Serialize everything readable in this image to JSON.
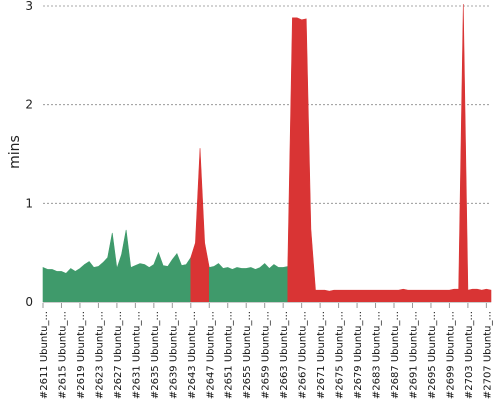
{
  "chart_data": {
    "type": "area",
    "title": "",
    "xlabel": "",
    "ylabel": "mins",
    "ylim": [
      0,
      3
    ],
    "y_ticks": [
      "0",
      "1",
      "2",
      "3"
    ],
    "grid": "horizontal dashed",
    "legend": "none",
    "colors": {
      "pass": "#3f9a6b",
      "fail": "#d93434"
    },
    "x_tick_labels": [
      "#2611 Ubuntu_...",
      "#2615 Ubuntu_...",
      "#2619 Ubuntu_...",
      "#2623 Ubuntu_...",
      "#2627 Ubuntu_...",
      "#2631 Ubuntu_...",
      "#2635 Ubuntu_...",
      "#2639 Ubuntu_...",
      "#2643 Ubuntu_...",
      "#2647 Ubuntu_...",
      "#2651 Ubuntu_...",
      "#2655 Ubuntu_...",
      "#2659 Ubuntu_...",
      "#2663 Ubuntu_...",
      "#2667 Ubuntu_...",
      "#2671 Ubuntu_...",
      "#2675 Ubuntu_...",
      "#2679 Ubuntu_...",
      "#2683 Ubuntu_...",
      "#2687 Ubuntu_...",
      "#2691 Ubuntu_...",
      "#2695 Ubuntu_...",
      "#2699 Ubuntu_...",
      "#2703 Ubuntu_...",
      "#2707 Ubuntu_..."
    ],
    "build_start": 2611,
    "build_end": 2708,
    "durations": [
      0.35,
      0.33,
      0.33,
      0.31,
      0.31,
      0.29,
      0.34,
      0.31,
      0.34,
      0.38,
      0.41,
      0.35,
      0.36,
      0.4,
      0.45,
      0.7,
      0.34,
      0.48,
      0.73,
      0.35,
      0.37,
      0.39,
      0.38,
      0.35,
      0.38,
      0.5,
      0.37,
      0.36,
      0.43,
      0.49,
      0.37,
      0.38,
      0.45,
      0.6,
      1.56,
      0.6,
      0.35,
      0.36,
      0.39,
      0.34,
      0.35,
      0.33,
      0.35,
      0.34,
      0.34,
      0.35,
      0.33,
      0.35,
      0.39,
      0.34,
      0.38,
      0.35,
      0.35,
      0.36,
      2.88,
      2.88,
      2.86,
      2.87,
      0.74,
      0.12,
      0.12,
      0.12,
      0.11,
      0.12,
      0.12,
      0.12,
      0.12,
      0.12,
      0.12,
      0.12,
      0.12,
      0.12,
      0.12,
      0.12,
      0.12,
      0.12,
      0.12,
      0.12,
      0.13,
      0.12,
      0.12,
      0.12,
      0.12,
      0.12,
      0.12,
      0.12,
      0.12,
      0.12,
      0.12,
      0.13,
      0.13,
      3.02,
      0.12,
      0.13,
      0.13,
      0.12,
      0.13,
      0.12
    ],
    "status": [
      "pass",
      "pass",
      "pass",
      "pass",
      "pass",
      "pass",
      "pass",
      "pass",
      "pass",
      "pass",
      "pass",
      "pass",
      "pass",
      "pass",
      "pass",
      "pass",
      "pass",
      "pass",
      "pass",
      "pass",
      "pass",
      "pass",
      "pass",
      "pass",
      "pass",
      "pass",
      "pass",
      "pass",
      "pass",
      "pass",
      "pass",
      "pass",
      "fail",
      "fail",
      "fail",
      "fail",
      "pass",
      "pass",
      "pass",
      "pass",
      "pass",
      "pass",
      "pass",
      "pass",
      "pass",
      "pass",
      "pass",
      "pass",
      "pass",
      "pass",
      "pass",
      "pass",
      "pass",
      "fail",
      "fail",
      "fail",
      "fail",
      "fail",
      "fail",
      "fail",
      "fail",
      "fail",
      "fail",
      "fail",
      "fail",
      "fail",
      "fail",
      "fail",
      "fail",
      "fail",
      "fail",
      "fail",
      "fail",
      "fail",
      "fail",
      "fail",
      "fail",
      "fail",
      "fail",
      "fail",
      "fail",
      "fail",
      "fail",
      "fail",
      "fail",
      "fail",
      "fail",
      "fail",
      "fail",
      "fail",
      "fail",
      "fail",
      "fail",
      "fail",
      "fail",
      "fail",
      "fail",
      "fail"
    ]
  }
}
